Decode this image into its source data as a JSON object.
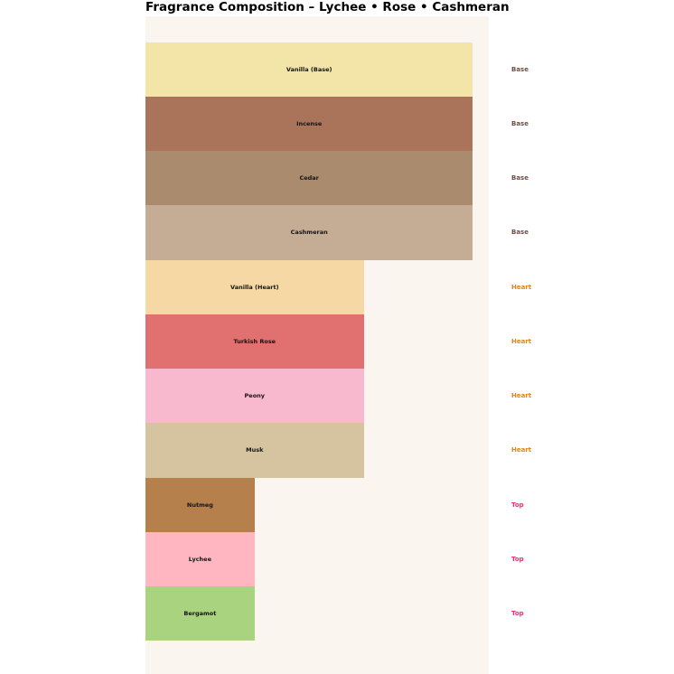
{
  "title": "Fragrance Composition – Lychee • Rose • Cashmeran",
  "chart_data": {
    "type": "bar",
    "orientation": "horizontal",
    "title": "Fragrance Composition – Lychee • Rose • Cashmeran",
    "xlabel": "",
    "ylabel": "",
    "xlim": [
      0,
      3.15
    ],
    "axes_visible": false,
    "grid": false,
    "legend": "none",
    "plot_background": "#faf5ee",
    "page_background": "#ffffff",
    "categories": [
      "Vanilla (Base)",
      "Incense",
      "Cedar",
      "Cashmeran",
      "Vanilla (Heart)",
      "Turkish Rose",
      "Peony",
      "Musk",
      "Nutmeg",
      "Lychee",
      "Bergamot"
    ],
    "values": [
      3,
      3,
      3,
      3,
      2,
      2,
      2,
      2,
      1,
      1,
      1
    ],
    "notes": [
      {
        "label": "Vanilla (Base)",
        "layer": "Base",
        "value": 3,
        "color": "#f2e5a7"
      },
      {
        "label": "Incense",
        "layer": "Base",
        "value": 3,
        "color": "#a9745a"
      },
      {
        "label": "Cedar",
        "layer": "Base",
        "value": 3,
        "color": "#aa8b6e"
      },
      {
        "label": "Cashmeran",
        "layer": "Base",
        "value": 3,
        "color": "#c5ad95"
      },
      {
        "label": "Vanilla (Heart)",
        "layer": "Heart",
        "value": 2,
        "color": "#f6d8a4"
      },
      {
        "label": "Turkish Rose",
        "layer": "Heart",
        "value": 2,
        "color": "#e17070"
      },
      {
        "label": "Peony",
        "layer": "Heart",
        "value": 2,
        "color": "#f8b8ce"
      },
      {
        "label": "Musk",
        "layer": "Heart",
        "value": 2,
        "color": "#d5c49f"
      },
      {
        "label": "Nutmeg",
        "layer": "Top",
        "value": 1,
        "color": "#b5804b"
      },
      {
        "label": "Lychee",
        "layer": "Top",
        "value": 1,
        "color": "#ffb6c1"
      },
      {
        "label": "Bergamot",
        "layer": "Top",
        "value": 1,
        "color": "#aad37f"
      }
    ],
    "layer_label_colors": {
      "Base": "#6e4f46",
      "Heart": "#ef8200",
      "Top": "#e8336e"
    }
  }
}
